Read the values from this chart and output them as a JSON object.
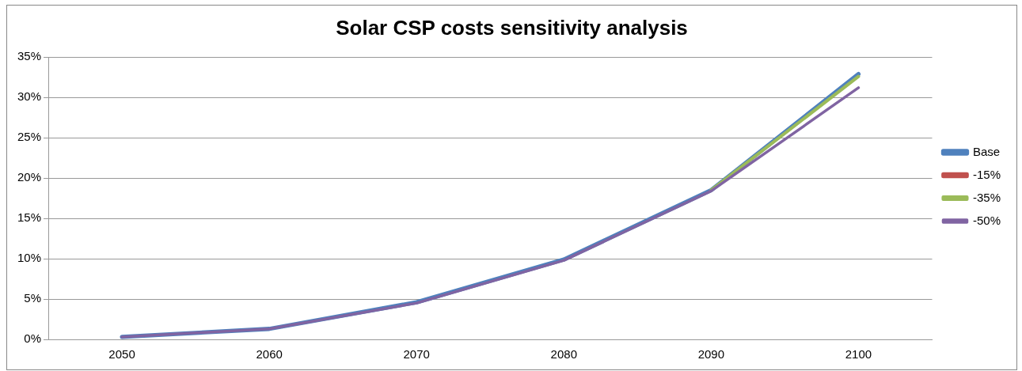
{
  "chart_data": {
    "type": "line",
    "title": "Solar CSP costs sensitivity analysis",
    "categories": [
      "2050",
      "2060",
      "2070",
      "2080",
      "2090",
      "2100"
    ],
    "series": [
      {
        "name": "Base",
        "color": "#4f81bd",
        "values": [
          0.3,
          1.3,
          4.6,
          9.9,
          18.5,
          32.9
        ]
      },
      {
        "name": "-15%",
        "color": "#c0504d",
        "values": [
          null,
          null,
          null,
          null,
          null,
          null
        ]
      },
      {
        "name": "-35%",
        "color": "#9bbb59",
        "values": [
          null,
          null,
          null,
          null,
          18.5,
          32.6
        ]
      },
      {
        "name": "-50%",
        "color": "#8064a2",
        "values": [
          0.3,
          1.3,
          4.5,
          9.8,
          18.4,
          31.2
        ]
      }
    ],
    "ylim": [
      0,
      35
    ],
    "yticks": [
      {
        "value": 0,
        "label": "0%"
      },
      {
        "value": 5,
        "label": "5%"
      },
      {
        "value": 10,
        "label": "10%"
      },
      {
        "value": 15,
        "label": "15%"
      },
      {
        "value": 20,
        "label": "20%"
      },
      {
        "value": 25,
        "label": "25%"
      },
      {
        "value": 30,
        "label": "30%"
      },
      {
        "value": 35,
        "label": "35%"
      }
    ],
    "grid": "y",
    "legend": "right",
    "marker": "none",
    "line_style": "solid"
  }
}
